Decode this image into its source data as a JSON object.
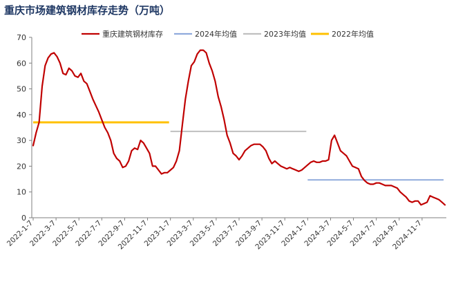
{
  "chart_data": {
    "type": "line",
    "title": "重庆市场建筑钢材库存走势（万吨）",
    "ylim": [
      0,
      70
    ],
    "yticks": [
      0,
      10,
      20,
      30,
      40,
      50,
      60,
      70
    ],
    "grid": false,
    "legend_position": "top",
    "x_tick_labels": [
      "2022-1-7",
      "2022-3-7",
      "2022-5-7",
      "2022-7-7",
      "2022-9-7",
      "2022-11-7",
      "2023-1-7",
      "2023-3-7",
      "2023-5-7",
      "2023-7-7",
      "2023-9-7",
      "2023-11-7",
      "2024-1-7",
      "2024-3-7",
      "2024-5-7",
      "2024-7-7",
      "2024-9-7",
      "2024-11-7"
    ],
    "series": [
      {
        "name": "重庆建筑钢材库存",
        "color": "#c00000",
        "values": [
          28,
          33,
          37,
          51,
          59,
          62,
          63.5,
          64,
          62.5,
          60,
          56,
          55.5,
          58,
          57,
          55,
          54.5,
          56,
          53,
          52,
          49,
          46,
          43.5,
          41,
          38,
          35,
          33,
          30,
          25,
          23,
          22,
          19.5,
          20,
          22,
          26,
          27,
          26.5,
          30,
          29,
          27,
          25,
          20,
          20,
          18.5,
          17,
          17.5,
          17.5,
          18.5,
          19.5,
          22,
          26,
          36,
          46,
          53,
          59,
          60.5,
          63.5,
          65,
          65,
          64,
          60,
          57,
          53,
          47,
          43,
          38,
          32,
          29,
          25,
          24,
          22.5,
          24,
          26,
          27,
          28,
          28.5,
          28.5,
          28.5,
          27.5,
          26,
          23,
          21,
          22,
          21,
          20,
          19.5,
          19,
          19.5,
          19,
          18.5,
          18,
          18.5,
          19.5,
          20.5,
          21.5,
          22,
          21.5,
          21.5,
          22,
          22,
          22.5,
          30,
          32,
          29,
          26,
          25,
          24,
          22,
          20,
          19.5,
          19,
          16,
          14.5,
          13.5,
          13,
          13,
          13.5,
          13.5,
          13,
          12.5,
          12.5,
          12.5,
          12,
          11.5,
          10,
          9,
          8,
          6.5,
          6,
          6.5,
          6.5,
          5,
          5.5,
          6,
          8.5,
          8,
          7.5,
          7,
          6,
          5
        ]
      },
      {
        "name": "2024年均值",
        "color": "#8faadc",
        "value": 14.7,
        "x_range": [
          "2024-1-7",
          "2024-12-27"
        ]
      },
      {
        "name": "2023年均值",
        "color": "#bfbfbf",
        "value": 33.5,
        "x_range": [
          "2023-1-7",
          "2023-12-29"
        ]
      },
      {
        "name": "2022年均值",
        "color": "#ffc000",
        "value": 37,
        "x_range": [
          "2022-1-7",
          "2022-12-30"
        ]
      }
    ]
  }
}
